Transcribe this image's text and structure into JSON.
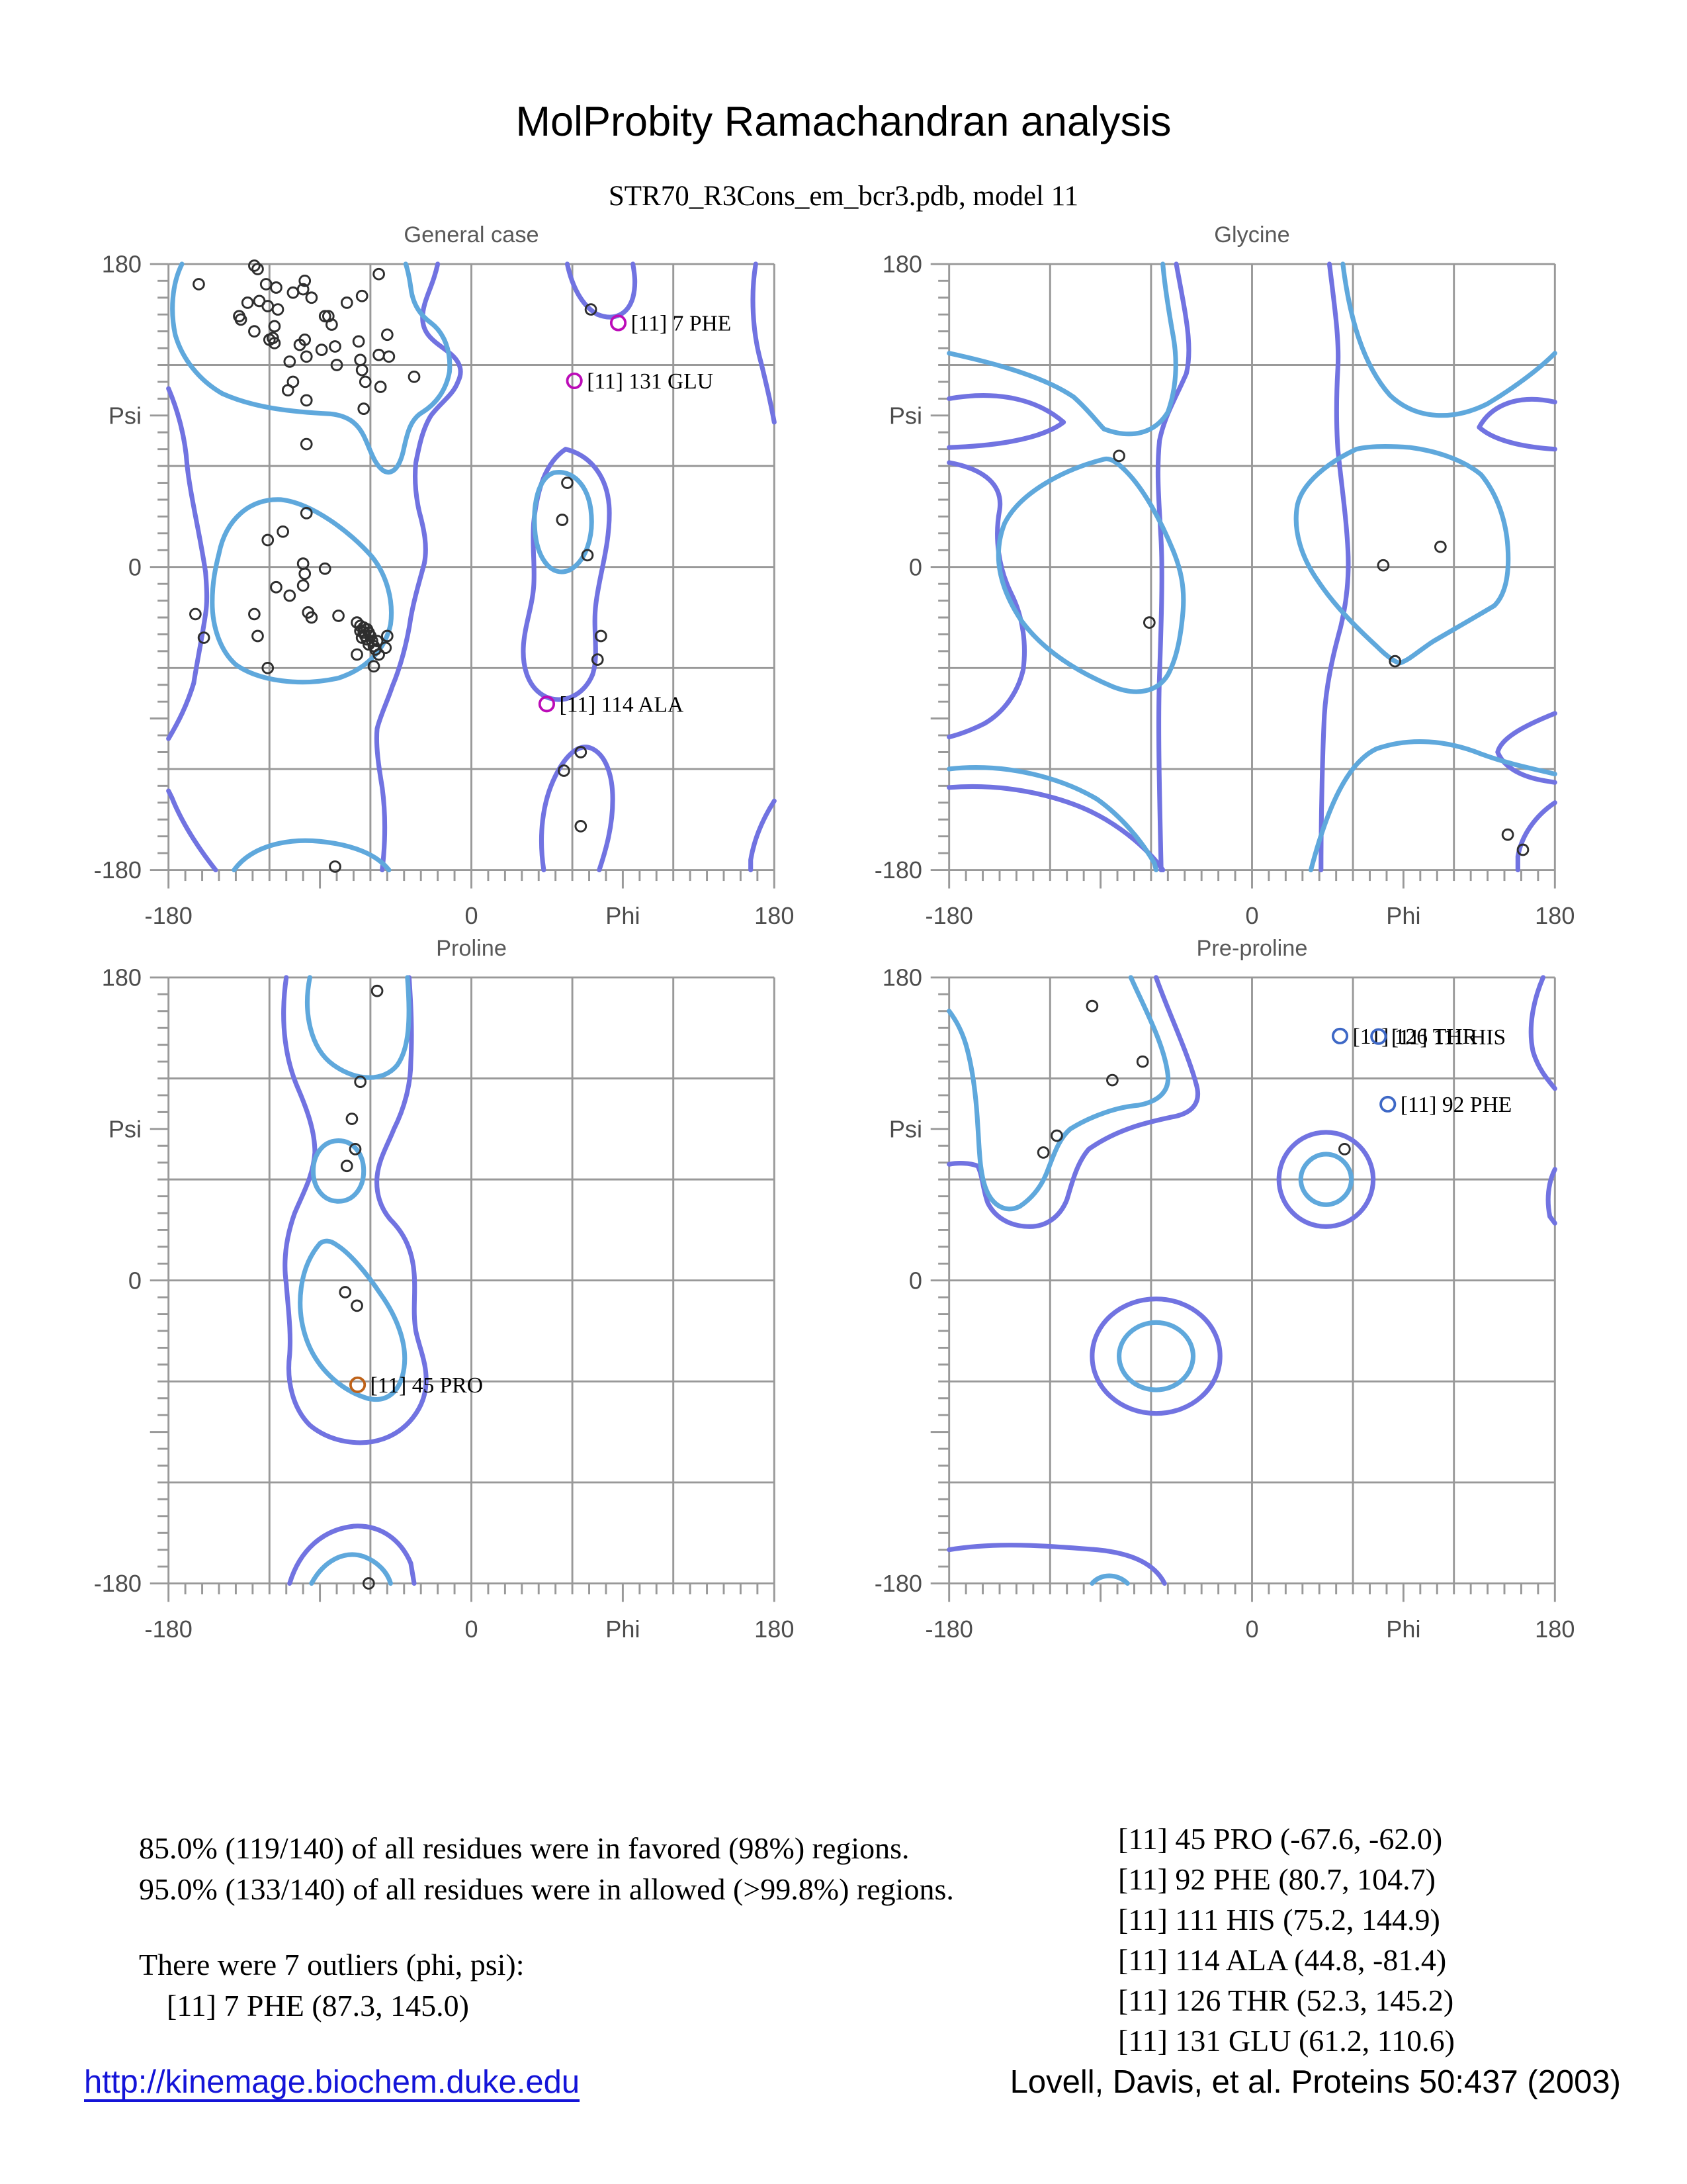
{
  "page": {
    "title": "MolProbity Ramachandran analysis",
    "subtitle": "STR70_R3Cons_em_bcr3.pdb, model 11"
  },
  "stats": {
    "favored_line": "85.0% (119/140) of all residues were in favored (98%) regions.",
    "allowed_line": "95.0% (133/140) of all residues were in allowed (>99.8%) regions.",
    "outlier_header": "There were 7 outliers (phi, psi):",
    "first_outlier": "[11]    7 PHE (87.3, 145.0)"
  },
  "outlier_list": [
    "[11]   45 PRO (-67.6, -62.0)",
    "[11]   92 PHE (80.7, 104.7)",
    "[11]  111 HIS (75.2, 144.9)",
    "[11]  114 ALA (44.8, -81.4)",
    "[11]  126 THR (52.3, 145.2)",
    "[11]  131 GLU (61.2, 110.6)"
  ],
  "footer": {
    "link": "http://kinemage.biochem.duke.edu",
    "citation": "Lovell, Davis, et al. Proteins 50:437 (2003)"
  },
  "chart_data": {
    "type": "scatter",
    "title": "MolProbity Ramachandran analysis",
    "xlabel": "Phi",
    "ylabel": "Psi",
    "xlim": [
      -180,
      180
    ],
    "ylim": [
      -180,
      180
    ],
    "grid_step": 60,
    "minor_tick_step": 10,
    "legend_position": "none",
    "grid": true,
    "colors": {
      "favored_contour": "#5fa8dc",
      "allowed_contour": "#7173e1",
      "grid": "#999999",
      "axis_text": "#4d4d4d",
      "plot_title": "#595959",
      "point": "#2e2e2e",
      "magenta": "#bc0cb8",
      "orange": "#bf6218",
      "blue": "#3e68c6",
      "label_text": "#000000"
    },
    "axis": {
      "xticks": [
        {
          "t": "-180",
          "v": -180
        },
        {
          "t": "0",
          "v": 0
        },
        {
          "t": "Phi",
          "v": 90
        },
        {
          "t": "180",
          "v": 180
        }
      ],
      "yticks": [
        {
          "t": "180",
          "v": 180
        },
        {
          "t": "Psi",
          "v": 90
        },
        {
          "t": "0",
          "v": 0
        },
        {
          "t": "-180",
          "v": -180
        }
      ]
    },
    "plots": [
      {
        "key": "general",
        "title": "General case",
        "points": [
          [
            -129,
            179
          ],
          [
            -127,
            177
          ],
          [
            -162,
            168
          ],
          [
            -122,
            168
          ],
          [
            -116,
            166
          ],
          [
            -106,
            163
          ],
          [
            -99,
            170
          ],
          [
            -100,
            165
          ],
          [
            -95,
            160
          ],
          [
            -65,
            161
          ],
          [
            -74,
            157
          ],
          [
            -55,
            174
          ],
          [
            -133,
            157
          ],
          [
            -126,
            158
          ],
          [
            -121,
            155
          ],
          [
            -115,
            153
          ],
          [
            -138,
            149
          ],
          [
            -137,
            147
          ],
          [
            -129,
            140
          ],
          [
            -117,
            143
          ],
          [
            -120,
            135
          ],
          [
            -118,
            136
          ],
          [
            -117,
            133
          ],
          [
            -87,
            149
          ],
          [
            -85,
            149
          ],
          [
            -83,
            144
          ],
          [
            -102,
            132
          ],
          [
            -99,
            135
          ],
          [
            -89,
            129
          ],
          [
            -81,
            131
          ],
          [
            -67,
            134
          ],
          [
            -50,
            138
          ],
          [
            -98,
            125
          ],
          [
            -108,
            122
          ],
          [
            -80,
            120
          ],
          [
            -66,
            123
          ],
          [
            -65,
            117
          ],
          [
            -55,
            126
          ],
          [
            -63,
            110
          ],
          [
            -34,
            113
          ],
          [
            -106,
            110
          ],
          [
            -109,
            105
          ],
          [
            -98,
            99
          ],
          [
            -98,
            73
          ],
          [
            -49,
            125
          ],
          [
            -54,
            107
          ],
          [
            -64,
            94
          ],
          [
            -98,
            32
          ],
          [
            -112,
            21
          ],
          [
            -121,
            16
          ],
          [
            -100,
            2
          ],
          [
            -99,
            -4
          ],
          [
            -87,
            -1
          ],
          [
            -100,
            -11
          ],
          [
            -116,
            -12
          ],
          [
            -108,
            -17
          ],
          [
            -129,
            -28
          ],
          [
            -127,
            -41
          ],
          [
            -164,
            -28
          ],
          [
            -159,
            -42
          ],
          [
            -97,
            -27
          ],
          [
            -95,
            -30
          ],
          [
            -79,
            -29
          ],
          [
            -121,
            -60
          ],
          [
            -68,
            -33
          ],
          [
            -66,
            -35
          ],
          [
            -64,
            -36
          ],
          [
            -62,
            -37
          ],
          [
            -66,
            -38
          ],
          [
            -64,
            -39
          ],
          [
            -61,
            -39
          ],
          [
            -63,
            -41
          ],
          [
            -65,
            -42
          ],
          [
            -62,
            -43
          ],
          [
            -60,
            -41
          ],
          [
            -59,
            -44
          ],
          [
            -61,
            -46
          ],
          [
            -58,
            -47
          ],
          [
            -56,
            -44
          ],
          [
            -57,
            -49
          ],
          [
            -55,
            -52
          ],
          [
            -51,
            -48
          ],
          [
            -50,
            -41
          ],
          [
            -58,
            -59
          ],
          [
            -68,
            -52
          ],
          [
            71,
            153
          ],
          [
            57,
            50
          ],
          [
            54,
            28
          ],
          [
            69,
            7
          ],
          [
            77,
            -41
          ],
          [
            75,
            -55
          ],
          [
            65,
            -110
          ],
          [
            55,
            -121
          ],
          [
            65,
            -154
          ],
          [
            -81,
            -178
          ]
        ],
        "outliers": [
          {
            "label": "[11]    7 PHE",
            "phi": 87.3,
            "psi": 145.0,
            "color": "magenta"
          },
          {
            "label": "[11]  131 GLU",
            "phi": 61.2,
            "psi": 110.6,
            "color": "magenta"
          },
          {
            "label": "[11]  114 ALA",
            "phi": 44.8,
            "psi": -81.4,
            "color": "magenta"
          }
        ],
        "contours": {
          "favored": [
            "M8,0 C2,12 1,28 4,42 C8,56 18,69 32,77 C52,86 76,88 96,89 C106,90 112,94 116,102 C120,110 122,119 128,123 C134,126 138,119 140,109 C142,100 144,92 151,88 C159,83 165,75 167,64 C168,52 164,41 156,35 C149,30 145,23 144,14 C143,7 142,3 141,0",
            "M30,172 C34,152 48,139 67,140 C85,142 108,159 121,174 C129,184 134,199 132,214 C129,228 119,240 101,246 C79,251 54,248 40,238 C31,230 26,216 26,201 C26,189 28,180 30,172 Z",
            "M229,124 C240,122 249,131 251,146 C253,162 248,177 238,182 C228,186 220,176 218,161 C216,142 220,127 229,124 Z",
            "M39,360 C49,346 70,341 90,343 C110,345 124,351 131,360"
          ],
          "allowed": [
            "M160,0 C157,14 151,22 151,32 C151,42 158,46 166,52 C174,58 175,64 172,70 C169,78 162,82 156,90 C151,98 149,108 147,118 C146,128 147,138 149,147 C152,158 154,168 152,178 C149,189 146,199 144,210 C142,224 138,239 133,251 C130,260 126,268 124,276 C123,286 125,299 127,311 C129,326 129,343 127,360",
            "M28,360 C17,346 8,332 2,317 L0,313",
            "M0,74 C6,88 10,104 11,119 C13,138 19,162 22,183 C23,195 23,202 22,208 C20,222 17,236 15,249 C11,262 6,272 0,282",
            "M237,0 C240,14 246,25 255,30 C265,34 273,30 276,20 C278,12 277,6 276,0",
            "M236,110 C252,114 262,128 262,148 C262,168 256,185 254,202 C252,218 256,232 252,244 C247,256 235,262 224,257 C214,252 210,240 211,226 C212,214 216,204 217,192 C218,180 216,168 217,154 C219,134 224,118 236,110 Z",
            "M223,360 C220,340 222,320 230,304 C236,292 244,284 252,288 C260,292 264,304 264,318 C264,334 260,348 256,360",
            "M349,0 C346,18 347,40 352,58 C355,70 358,83 360,94",
            "M360,319 C353,330 348,342 346,354 L346,360"
          ]
        }
      },
      {
        "key": "glycine",
        "title": "Glycine",
        "points": [
          [
            -79,
            66
          ],
          [
            -61,
            -33
          ],
          [
            78,
            1
          ],
          [
            112,
            12
          ],
          [
            85,
            -56
          ],
          [
            152,
            -159
          ],
          [
            161,
            -168
          ]
        ],
        "outliers": [],
        "contours": {
          "favored": [
            "M0,53 C32,60 58,68 74,79 C83,87 88,94 92,98 C108,104 122,101 130,88 C135,74 136,58 133,42 C130,25 128,12 127,0",
            "M92,116 C68,122 42,136 33,154 C25,174 31,194 43,212 C57,231 78,243 97,251 C112,257 124,254 130,244 C136,233 138,218 139,206 C140,193 138,182 133,170 C126,153 116,134 105,123 C100,118 96,115 92,116 Z",
            "M0,300 C35,296 68,306 88,318 C102,328 114,342 122,356 L123,360",
            "M234,0 C238,32 246,60 262,78 C278,93 300,93 320,83 C335,74 350,63 360,53",
            "M242,110 C225,118 210,130 207,143 C204,159 210,175 219,188 C229,203 242,216 254,227 C261,234 266,237 268,237 C274,235 280,229 288,224 C300,217 314,209 324,203 C331,196 333,183 332,168 C331,153 326,137 316,125 C305,116 289,111 274,109 C261,108 250,108 242,110 Z",
            "M215,360 C225,322 237,296 254,288 C274,281 296,283 316,291 C332,297 348,300 360,303"
          ],
          "allowed": [
            "M0,80 C28,75 52,80 68,94 C55,104 28,108 0,109",
            "M0,118 C22,122 32,132 30,146 C27,162 29,180 37,196 C44,210 46,226 44,241 C41,254 33,266 21,273 C11,278 4,280 0,281",
            "M0,311 C38,308 73,318 93,330 C108,339 120,350 127,360",
            "M135,0 C140,28 145,48 141,65 C135,79 128,90 125,105 C123,125 125,145 126,165 C127,185 126,215 125,245 C124,275 125,315 126,360",
            "M226,0 C229,25 232,45 231,62 C230,80 230,95 231,110 C233,130 236,150 237,170 C238,190 235,208 231,222 C227,237 224,252 223,268 C222,288 221,324 221,360",
            "M360,82 C338,77 322,84 315,97 C325,106 345,109 360,110",
            "M360,267 C340,275 328,282 326,290 C330,300 342,305 354,307 L360,308",
            "M360,320 C348,328 340,340 338,352 L338,360"
          ]
        }
      },
      {
        "key": "proline",
        "title": "Proline",
        "points": [
          [
            -56,
            172
          ],
          [
            -66,
            118
          ],
          [
            -71,
            96
          ],
          [
            -69,
            78
          ],
          [
            -74,
            68
          ],
          [
            -75,
            -7
          ],
          [
            -68,
            -15
          ],
          [
            -61,
            -180
          ]
        ],
        "outliers": [
          {
            "label": "[11]   45 PRO",
            "phi": -67.6,
            "psi": -62.0,
            "color": "orange"
          }
        ],
        "contours": {
          "favored": [
            "M84,0 C80,20 84,42 98,52 C112,62 128,62 136,52 C143,42 144,25 142,0",
            "M86,115 C86,105 92,97 101,97 C110,97 116,105 116,115 C116,125 110,133 101,133 C92,133 86,125 86,115 Z",
            "M90,158 C78,172 75,195 82,215 C88,232 102,245 118,250 C130,253 138,246 140,232 C142,218 136,202 126,188 C118,176 108,164 100,159 C96,156 93,156 90,158 Z",
            "M85,360 C92,347 104,340 116,344 C124,347 130,353 132,360"
          ],
          "allowed": [
            "M70,0 C66,28 70,50 77,66 C83,80 87,92 87,104 C86,118 80,128 75,140 C70,154 68,168 70,182 C71,196 73,210 72,224 C70,240 74,256 84,266 C96,276 114,279 128,274 C142,269 152,256 153,242 C154,230 149,220 147,210 C145,198 147,188 146,176 C145,162 140,152 132,144 C126,137 123,128 124,118 C125,108 130,100 134,90 C140,78 144,64 144,50 C145,32 144,15 143,0",
            "M72,360 C78,340 92,328 110,326 C126,325 138,334 144,348 L146,360"
          ]
        }
      },
      {
        "key": "preproline",
        "title": "Pre-proline",
        "points": [
          [
            -95,
            163
          ],
          [
            -65,
            130
          ],
          [
            -83,
            119
          ],
          [
            -116,
            86
          ],
          [
            -124,
            76
          ],
          [
            55,
            78
          ]
        ],
        "outliers": [
          {
            "label": "[11]  126 THR",
            "phi": 52.3,
            "psi": 145.2,
            "color": "blue"
          },
          {
            "label": "[11]  111 HIS",
            "phi": 75.2,
            "psi": 144.9,
            "color": "blue"
          },
          {
            "label": "[11]   92 PHE",
            "phi": 80.7,
            "psi": 104.7,
            "color": "blue"
          }
        ],
        "contours": {
          "favored": [
            "M108,0 C116,18 128,40 130,58 C131,68 124,74 112,76 C100,77 85,82 72,90 C65,96 62,106 58,116 C54,126 48,132 42,136 C34,140 26,136 22,126 C18,116 18,102 17,88 C16,70 14,54 10,40 C7,30 3,24 0,20",
            "M209,120 C209,112 216,105 224,105 C232,105 239,112 239,120 C239,128 232,135 224,135 C216,135 209,128 209,120 Z",
            "M101,225 C101,214 111,205 123,205 C135,205 145,214 145,225 C145,236 135,245 123,245 C111,245 101,236 101,225 Z",
            "M85,360 C90,354 100,354 106,360"
          ],
          "allowed": [
            "M123,0 C130,20 142,45 147,64 C150,75 144,81 132,83 C118,86 100,90 83,102 C76,110 73,122 70,132 C66,142 58,148 48,148 C38,148 28,144 23,134 C20,126 20,118 17,112 C12,110 5,110 0,111",
            "M196,120 C196,105 208,92 224,92 C240,92 252,105 252,120 C252,135 240,148 224,148 C208,148 196,135 196,120 Z",
            "M85,225 C85,206 102,191 123,191 C144,191 161,206 161,225 C161,244 144,259 123,259 C102,259 85,244 85,225 Z",
            "M0,340 C30,335 62,338 88,340 C108,342 122,348 128,360",
            "M353,0 C347,14 344,30 347,44 C350,54 355,60 360,66",
            "M360,114 C356,122 355,132 357,142 L360,146"
          ]
        }
      }
    ]
  }
}
